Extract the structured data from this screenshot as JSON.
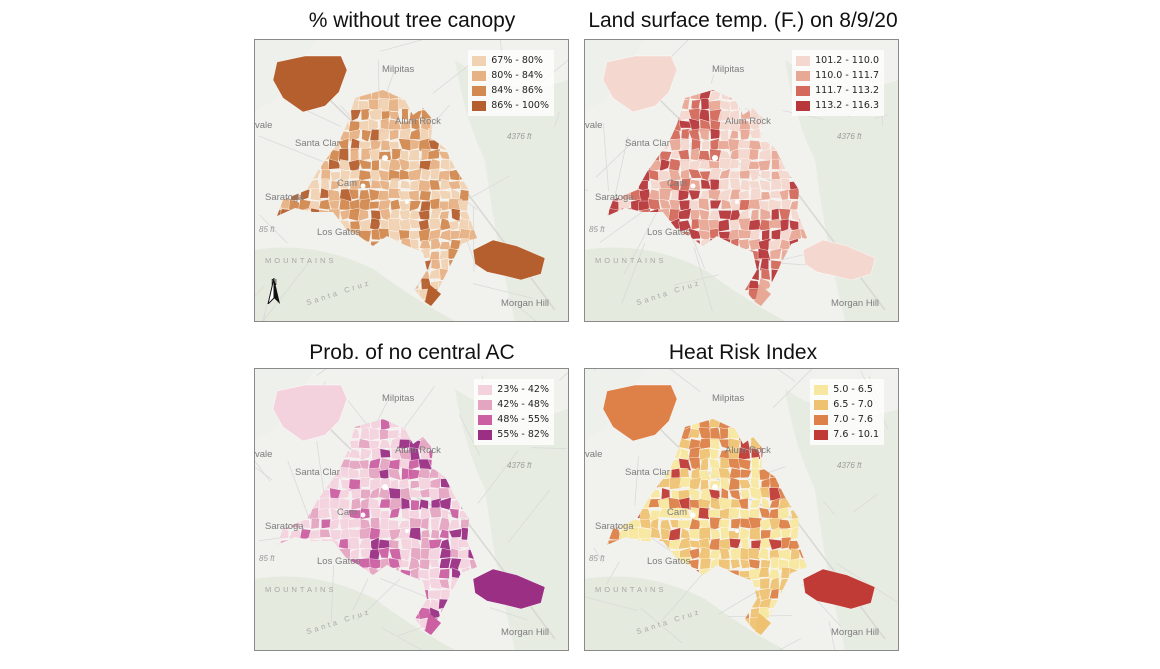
{
  "panels": [
    {
      "title": "% without tree canopy",
      "legend": [
        {
          "label": "67% - 80%",
          "color": "#f1d2b3"
        },
        {
          "label": "80% - 84%",
          "color": "#e6b283"
        },
        {
          "label": "84% - 86%",
          "color": "#d28a50"
        },
        {
          "label": "86% - 100%",
          "color": "#b65f2e"
        }
      ]
    },
    {
      "title": "Land surface temp. (F.) on 8/9/20",
      "legend": [
        {
          "label": "101.2 - 110.0",
          "color": "#f4d7ce"
        },
        {
          "label": "110.0 - 111.7",
          "color": "#e8a896"
        },
        {
          "label": "111.7 - 113.2",
          "color": "#d36a5b"
        },
        {
          "label": "113.2 - 116.3",
          "color": "#b7373a"
        }
      ]
    },
    {
      "title": "Prob. of no central AC",
      "legend": [
        {
          "label": "23% - 42%",
          "color": "#f3d2de"
        },
        {
          "label": "42% - 48%",
          "color": "#e4a5c1"
        },
        {
          "label": "48% - 55%",
          "color": "#cc5fa2"
        },
        {
          "label": "55% - 82%",
          "color": "#9a2f84"
        }
      ]
    },
    {
      "title": "Heat Risk Index",
      "legend": [
        {
          "label": "5.0 - 6.5",
          "color": "#f7e7a0"
        },
        {
          "label": "6.5 - 7.0",
          "color": "#efc272"
        },
        {
          "label": "7.0 - 7.6",
          "color": "#dd8148"
        },
        {
          "label": "7.6 - 10.1",
          "color": "#c03b35"
        }
      ]
    }
  ],
  "base_map": {
    "places": {
      "milpitas": "Milpitas",
      "alum_rock": "Alum Rock",
      "santa_clara": "Santa Clar",
      "saratoga": "Saratoga",
      "los_gatos": "Los Gatos",
      "morgan_hill": "Morgan Hill",
      "vale": "vale",
      "cam": "Cam",
      "elev_4376": "4376 ft",
      "elev_85": "85 ft",
      "mountains": "MOUNTAINS",
      "santa_cruz": "Santa Cruz"
    },
    "north_label": "N"
  }
}
